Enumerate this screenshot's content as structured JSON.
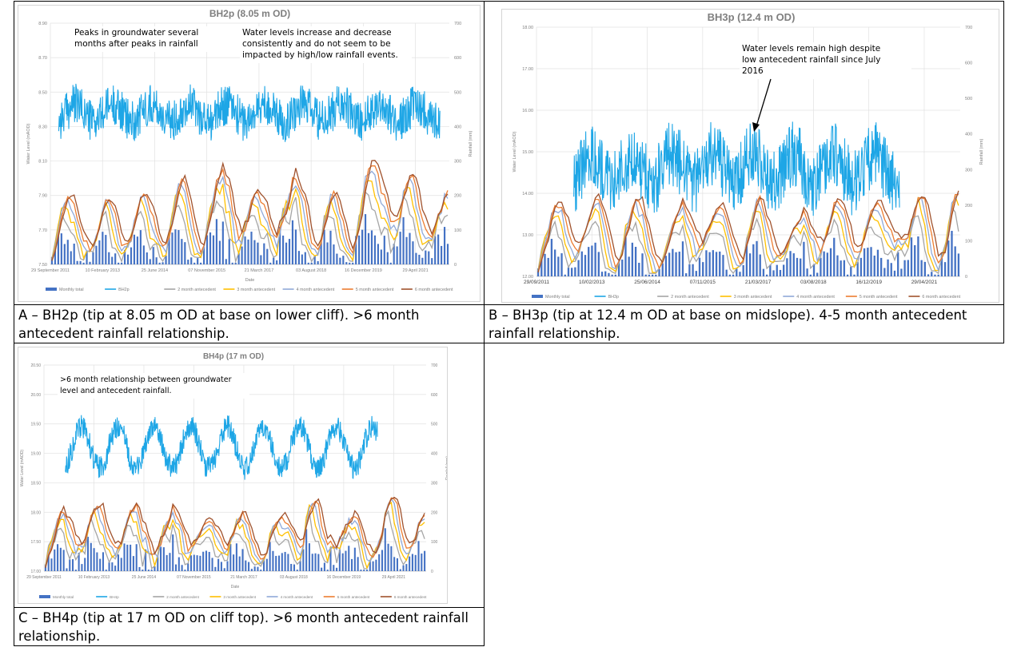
{
  "colors": {
    "monthly_total": "#4472c4",
    "gw": "#1ea6e6",
    "m2": "#a5a5a5",
    "m3": "#ffc000",
    "m4": "#8fa9d9",
    "m5": "#ed7d31",
    "m6": "#a0522d",
    "grid": "#e1e1e1",
    "title": "#7f7f7f",
    "axis_text": "#7f7f7f"
  },
  "charts": [
    {
      "id": "A",
      "chart_data": {
        "type": "line",
        "title": "BH2p (8.05 m OD)",
        "xlabel": "Date",
        "ylabel": "Water Level (mAOD)",
        "y2label": "Rainfall (mm)",
        "ylim": [
          7.5,
          8.9
        ],
        "y2lim": [
          0,
          700
        ],
        "yticks": [
          "7.50",
          "7.70",
          "7.90",
          "8.10",
          "8.30",
          "8.50",
          "8.70",
          "8.90"
        ],
        "y2ticks": [
          "0",
          "100",
          "200",
          "300",
          "400",
          "500",
          "600",
          "700"
        ],
        "xticks": [
          "29 September 2011",
          "10 February 2013",
          "25 June 2014",
          "07 November 2015",
          "21 March 2017",
          "03 August 2018",
          "16 December 2019",
          "29 April 2021"
        ],
        "x_range": [
          "2011-09-29",
          "2022-03-31"
        ],
        "legend_position": "bottom",
        "series": [
          {
            "key": "monthly_total",
            "name": "Monthly total",
            "type": "bar",
            "axis": "right"
          },
          {
            "key": "gw",
            "name": "BH2p",
            "type": "line",
            "axis": "left"
          },
          {
            "key": "m2",
            "name": "2 month antecedent",
            "type": "line",
            "axis": "right"
          },
          {
            "key": "m3",
            "name": "3 month antecedent",
            "type": "line",
            "axis": "right"
          },
          {
            "key": "m4",
            "name": "4 month antecedent",
            "type": "line",
            "axis": "right"
          },
          {
            "key": "m5",
            "name": "5 month antecedent",
            "type": "line",
            "axis": "right"
          },
          {
            "key": "m6",
            "name": "6 month antecedent",
            "type": "line",
            "axis": "right"
          }
        ],
        "groundwater": {
          "start": "2011-12-15",
          "end": "2021-12-31",
          "base": 8.38,
          "amplitude": 0.05,
          "noise": 0.12
        },
        "annotations": [
          {
            "lines": [
              "Peaks in groundwater several",
              "months after peaks in rainfall"
            ]
          },
          {
            "lines": [
              "Water levels increase and decrease",
              "consistently and do not seem to be",
              "impacted by high/low rainfall events."
            ]
          }
        ]
      }
    },
    {
      "id": "B",
      "chart_data": {
        "type": "line",
        "title": "BH3p (12.4  m OD)",
        "xlabel": "",
        "ylabel": "Water Level (mAOD)",
        "y2label": "Rainfall (mm)",
        "ylim": [
          12.0,
          18.0
        ],
        "y2lim": [
          0,
          700
        ],
        "yticks": [
          "12.00",
          "13.00",
          "14.00",
          "15.00",
          "16.00",
          "17.00",
          "18.00"
        ],
        "y2ticks": [
          "0",
          "100",
          "200",
          "300",
          "400",
          "500",
          "600",
          "700"
        ],
        "xticks": [
          "29/09/2011",
          "10/02/2013",
          "25/06/2014",
          "07/11/2015",
          "21/03/2017",
          "03/08/2018",
          "16/12/2019",
          "29/04/2021"
        ],
        "x_range": [
          "2011-09-29",
          "2022-03-31"
        ],
        "legend_position": "bottom",
        "series": [
          {
            "key": "monthly_total",
            "name": "Monthly total",
            "type": "bar",
            "axis": "right"
          },
          {
            "key": "gw",
            "name": "BH3p",
            "type": "line",
            "axis": "left"
          },
          {
            "key": "m2",
            "name": "2 month antecedent",
            "type": "line",
            "axis": "right"
          },
          {
            "key": "m3",
            "name": "3 month antecedent",
            "type": "line",
            "axis": "right"
          },
          {
            "key": "m4",
            "name": "4 month antecedent",
            "type": "line",
            "axis": "right"
          },
          {
            "key": "m5",
            "name": "5 month antecedent",
            "type": "line",
            "axis": "right"
          },
          {
            "key": "m6",
            "name": "6 month antecedent",
            "type": "line",
            "axis": "right"
          }
        ],
        "groundwater": {
          "start": "2012-09-01",
          "end": "2020-09-30",
          "base": 14.6,
          "amplitude": 0.35,
          "noise": 0.8
        },
        "annotations": [
          {
            "lines": [
              "Water levels remain high despite",
              "low antecedent rainfall since July",
              "2016"
            ]
          }
        ]
      }
    },
    {
      "id": "C",
      "chart_data": {
        "type": "line",
        "title": "BH4p (17 m OD)",
        "xlabel": "Date",
        "ylabel": "Water Level (mAOD)",
        "y2label": "Rainfall (mm)",
        "ylim": [
          17.0,
          20.5
        ],
        "y2lim": [
          0,
          700
        ],
        "yticks": [
          "17.00",
          "17.50",
          "18.00",
          "18.50",
          "19.00",
          "19.50",
          "20.00",
          "20.50"
        ],
        "y2ticks": [
          "0",
          "100",
          "200",
          "300",
          "400",
          "500",
          "600",
          "700"
        ],
        "xticks": [
          "29 September 2011",
          "10 February 2013",
          "25 June 2014",
          "07 November 2015",
          "21 March 2017",
          "03 August 2018",
          "16 December 2019",
          "29 April 2021"
        ],
        "x_range": [
          "2011-09-29",
          "2022-03-31"
        ],
        "legend_position": "bottom",
        "series": [
          {
            "key": "monthly_total",
            "name": "Monthly total",
            "type": "bar",
            "axis": "right"
          },
          {
            "key": "gw",
            "name": "BH4p",
            "type": "line",
            "axis": "left"
          },
          {
            "key": "m2",
            "name": "2 month antecedent",
            "type": "line",
            "axis": "right"
          },
          {
            "key": "m3",
            "name": "3 month antecedent",
            "type": "line",
            "axis": "right"
          },
          {
            "key": "m4",
            "name": "4 month antecedent",
            "type": "line",
            "axis": "right"
          },
          {
            "key": "m5",
            "name": "5 month antecedent",
            "type": "line",
            "axis": "right"
          },
          {
            "key": "m6",
            "name": "6 month antecedent",
            "type": "line",
            "axis": "right"
          }
        ],
        "groundwater": {
          "start": "2012-05-01",
          "end": "2020-11-30",
          "base": 19.1,
          "amplitude": 0.35,
          "noise": 0.2
        },
        "annotations": [
          {
            "lines": [
              ">6 month relationship between groundwater",
              "level and antecedent rainfall."
            ]
          }
        ]
      }
    }
  ],
  "captions": {
    "A": "A – BH2p (tip at 8.05 m OD at base on lower cliff). >6 month antecedent rainfall relationship.",
    "B": "B – BH3p (tip at 12.4 m OD at base on midslope). 4-5 month antecedent rainfall relationship.",
    "C": "C – BH4p (tip at 17 m OD on cliff top). >6 month antecedent rainfall relationship."
  }
}
